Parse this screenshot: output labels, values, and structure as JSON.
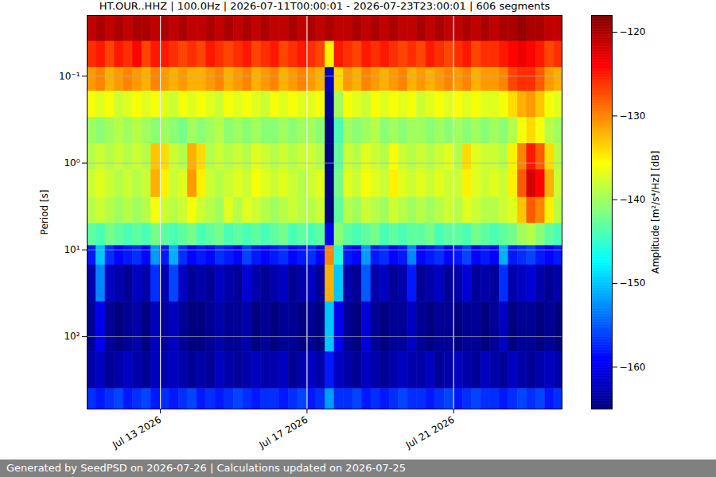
{
  "chart_data": {
    "type": "heatmap",
    "title": "HT.OUR..HHZ | 100.0Hz | 2026-07-11T00:00:01 - 2026-07-23T23:00:01 | 606 segments",
    "caption": "Generated by SeedPSD on 2026-07-26 | Calculations updated on 2026-07-25",
    "y_label": "Period [s]",
    "log": "y",
    "grid": true,
    "xlim": [
      "2026-07-11T00:00:01",
      "2026-07-23T23:00:01"
    ],
    "xticks": [
      {
        "value": "2026-07-13T00:00:00",
        "label": "Jul 13 2026"
      },
      {
        "value": "2026-07-17T00:00:00",
        "label": "Jul 17 2026"
      },
      {
        "value": "2026-07-21T00:00:00",
        "label": "Jul 21 2026"
      }
    ],
    "ylim": [
      0.02,
      680
    ],
    "yticks": [
      {
        "value": 0.1,
        "label": "10⁻¹"
      },
      {
        "value": 1,
        "label": "10⁰"
      },
      {
        "value": 10,
        "label": "10¹"
      },
      {
        "value": 100,
        "label": "10²"
      }
    ],
    "x": [
      "2026-07-11T00:00:01",
      "2026-07-11T06:00:01",
      "2026-07-11T12:00:01",
      "2026-07-11T18:00:01",
      "2026-07-12T00:00:01",
      "2026-07-12T06:00:01",
      "2026-07-12T12:00:01",
      "2026-07-12T18:00:01",
      "2026-07-13T00:00:01",
      "2026-07-13T06:00:01",
      "2026-07-13T12:00:01",
      "2026-07-13T18:00:01",
      "2026-07-14T00:00:01",
      "2026-07-14T06:00:01",
      "2026-07-14T12:00:01",
      "2026-07-14T18:00:01",
      "2026-07-15T00:00:01",
      "2026-07-15T06:00:01",
      "2026-07-15T12:00:01",
      "2026-07-15T18:00:01",
      "2026-07-16T00:00:01",
      "2026-07-16T06:00:01",
      "2026-07-16T12:00:01",
      "2026-07-16T18:00:01",
      "2026-07-17T00:00:01",
      "2026-07-17T06:00:01",
      "2026-07-17T12:00:01",
      "2026-07-17T18:00:01",
      "2026-07-18T00:00:01",
      "2026-07-18T06:00:01",
      "2026-07-18T12:00:01",
      "2026-07-18T18:00:01",
      "2026-07-19T00:00:01",
      "2026-07-19T06:00:01",
      "2026-07-19T12:00:01",
      "2026-07-19T18:00:01",
      "2026-07-20T00:00:01",
      "2026-07-20T06:00:01",
      "2026-07-20T12:00:01",
      "2026-07-20T18:00:01",
      "2026-07-21T00:00:01",
      "2026-07-21T06:00:01",
      "2026-07-21T12:00:01",
      "2026-07-21T18:00:01",
      "2026-07-22T00:00:01",
      "2026-07-22T06:00:01",
      "2026-07-22T12:00:01",
      "2026-07-22T18:00:01",
      "2026-07-23T00:00:01",
      "2026-07-23T06:00:01",
      "2026-07-23T12:00:01",
      "2026-07-23T18:00:01"
    ],
    "y_edges": [
      0.02,
      0.04,
      0.08,
      0.15,
      0.3,
      0.6,
      1.2,
      2.5,
      5,
      9,
      15,
      40,
      150,
      400,
      680
    ],
    "values": [
      [
        -121,
        -120,
        -121,
        -120,
        -121,
        -120,
        -120,
        -121,
        -120,
        -121,
        -120,
        -121,
        -121,
        -120,
        -121,
        -120,
        -121,
        -120,
        -121,
        -120,
        -121,
        -121,
        -120,
        -121,
        -120,
        -121,
        -120,
        -121,
        -121,
        -120,
        -121,
        -120,
        -121,
        -120,
        -121,
        -121,
        -120,
        -121,
        -120,
        -121,
        -121,
        -120,
        -121,
        -120,
        -121,
        -120,
        -120,
        -119,
        -120,
        -120,
        -121,
        -121
      ],
      [
        -126,
        -125,
        -127,
        -125,
        -126,
        -124,
        -127,
        -125,
        -125,
        -126,
        -127,
        -126,
        -127,
        -125,
        -126,
        -127,
        -126,
        -125,
        -127,
        -126,
        -125,
        -127,
        -126,
        -125,
        -126,
        -127,
        -135,
        -125,
        -126,
        -127,
        -125,
        -126,
        -125,
        -126,
        -127,
        -126,
        -127,
        -125,
        -126,
        -127,
        -126,
        -125,
        -127,
        -126,
        -126,
        -125,
        -124,
        -123,
        -124,
        -125,
        -127,
        -126
      ],
      [
        -131,
        -130,
        -132,
        -131,
        -130,
        -131,
        -132,
        -130,
        -131,
        -132,
        -131,
        -132,
        -132,
        -131,
        -130,
        -132,
        -131,
        -130,
        -132,
        -131,
        -130,
        -132,
        -131,
        -130,
        -131,
        -132,
        -162,
        -134,
        -131,
        -132,
        -130,
        -131,
        -132,
        -131,
        -130,
        -132,
        -131,
        -132,
        -131,
        -130,
        -131,
        -130,
        -132,
        -131,
        -131,
        -130,
        -127,
        -126,
        -126,
        -128,
        -131,
        -132
      ],
      [
        -136,
        -137,
        -136,
        -138,
        -137,
        -136,
        -137,
        -136,
        -137,
        -138,
        -136,
        -137,
        -136,
        -137,
        -138,
        -136,
        -137,
        -136,
        -137,
        -138,
        -136,
        -137,
        -136,
        -137,
        -137,
        -136,
        -164,
        -140,
        -136,
        -137,
        -138,
        -136,
        -137,
        -136,
        -137,
        -136,
        -138,
        -137,
        -136,
        -137,
        -136,
        -137,
        -136,
        -137,
        -137,
        -136,
        -134,
        -132,
        -131,
        -133,
        -136,
        -137
      ],
      [
        -140,
        -141,
        -140,
        -139,
        -140,
        -139,
        -140,
        -141,
        -140,
        -141,
        -142,
        -140,
        -141,
        -140,
        -139,
        -141,
        -140,
        -141,
        -140,
        -141,
        -141,
        -140,
        -141,
        -140,
        -140,
        -141,
        -165,
        -144,
        -140,
        -141,
        -140,
        -139,
        -141,
        -140,
        -141,
        -140,
        -140,
        -141,
        -140,
        -141,
        -140,
        -141,
        -140,
        -141,
        -140,
        -141,
        -139,
        -136,
        -134,
        -136,
        -139,
        -140
      ],
      [
        -139,
        -138,
        -139,
        -138,
        -139,
        -138,
        -139,
        -133,
        -134,
        -138,
        -139,
        -132,
        -134,
        -139,
        -138,
        -139,
        -138,
        -139,
        -137,
        -138,
        -139,
        -138,
        -139,
        -138,
        -138,
        -139,
        -165,
        -143,
        -138,
        -139,
        -137,
        -138,
        -139,
        -136,
        -138,
        -139,
        -138,
        -139,
        -138,
        -137,
        -139,
        -134,
        -137,
        -138,
        -138,
        -139,
        -135,
        -130,
        -125,
        -128,
        -134,
        -139
      ],
      [
        -138,
        -137,
        -138,
        -139,
        -138,
        -139,
        -138,
        -132,
        -135,
        -138,
        -137,
        -131,
        -135,
        -138,
        -139,
        -138,
        -137,
        -138,
        -136,
        -137,
        -138,
        -137,
        -138,
        -139,
        -138,
        -137,
        -165,
        -142,
        -137,
        -138,
        -136,
        -137,
        -138,
        -135,
        -137,
        -138,
        -137,
        -138,
        -137,
        -138,
        -138,
        -135,
        -137,
        -138,
        -137,
        -138,
        -135,
        -128,
        -122,
        -124,
        -132,
        -138
      ],
      [
        -139,
        -138,
        -139,
        -140,
        -139,
        -140,
        -139,
        -136,
        -138,
        -139,
        -138,
        -136,
        -138,
        -139,
        -140,
        -137,
        -139,
        -137,
        -138,
        -139,
        -140,
        -139,
        -138,
        -139,
        -139,
        -138,
        -165,
        -143,
        -139,
        -140,
        -138,
        -139,
        -140,
        -138,
        -139,
        -140,
        -139,
        -140,
        -139,
        -138,
        -139,
        -137,
        -138,
        -139,
        -139,
        -138,
        -137,
        -133,
        -128,
        -130,
        -135,
        -139
      ],
      [
        -143,
        -144,
        -142,
        -143,
        -144,
        -143,
        -144,
        -142,
        -143,
        -144,
        -143,
        -142,
        -144,
        -143,
        -142,
        -144,
        -143,
        -144,
        -143,
        -144,
        -143,
        -142,
        -144,
        -143,
        -144,
        -143,
        -160,
        -141,
        -143,
        -144,
        -143,
        -142,
        -144,
        -143,
        -144,
        -143,
        -143,
        -142,
        -144,
        -143,
        -143,
        -144,
        -142,
        -143,
        -144,
        -143,
        -142,
        -140,
        -139,
        -141,
        -143,
        -144
      ],
      [
        -158,
        -150,
        -157,
        -159,
        -158,
        -157,
        -159,
        -152,
        -158,
        -151,
        -157,
        -159,
        -158,
        -159,
        -157,
        -158,
        -159,
        -156,
        -158,
        -159,
        -158,
        -157,
        -159,
        -158,
        -157,
        -159,
        -130,
        -146,
        -158,
        -159,
        -152,
        -158,
        -157,
        -159,
        -158,
        -153,
        -159,
        -158,
        -157,
        -159,
        -158,
        -156,
        -159,
        -158,
        -159,
        -151,
        -158,
        -157,
        -156,
        -158,
        -159,
        -158
      ],
      [
        -163,
        -153,
        -162,
        -163,
        -164,
        -162,
        -163,
        -157,
        -163,
        -156,
        -162,
        -164,
        -163,
        -164,
        -162,
        -163,
        -164,
        -161,
        -163,
        -164,
        -163,
        -162,
        -164,
        -163,
        -162,
        -164,
        -132,
        -150,
        -163,
        -164,
        -155,
        -163,
        -162,
        -164,
        -163,
        -158,
        -164,
        -163,
        -162,
        -164,
        -163,
        -161,
        -164,
        -163,
        -164,
        -157,
        -163,
        -162,
        -161,
        -163,
        -164,
        -163
      ],
      [
        -164,
        -160,
        -164,
        -165,
        -164,
        -163,
        -165,
        -162,
        -164,
        -162,
        -164,
        -165,
        -165,
        -164,
        -163,
        -164,
        -164,
        -163,
        -165,
        -164,
        -165,
        -164,
        -164,
        -165,
        -164,
        -165,
        -150,
        -160,
        -164,
        -165,
        -161,
        -164,
        -165,
        -164,
        -164,
        -162,
        -164,
        -165,
        -164,
        -164,
        -165,
        -164,
        -164,
        -165,
        -164,
        -162,
        -165,
        -164,
        -164,
        -165,
        -164,
        -165
      ],
      [
        -163,
        -162,
        -164,
        -163,
        -162,
        -163,
        -164,
        -162,
        -163,
        -162,
        -163,
        -164,
        -163,
        -164,
        -162,
        -163,
        -164,
        -163,
        -162,
        -163,
        -163,
        -162,
        -164,
        -163,
        -162,
        -163,
        -158,
        -162,
        -163,
        -164,
        -162,
        -163,
        -164,
        -163,
        -162,
        -163,
        -163,
        -162,
        -164,
        -163,
        -162,
        -163,
        -164,
        -162,
        -163,
        -164,
        -162,
        -163,
        -164,
        -163,
        -162,
        -163
      ],
      [
        -157,
        -158,
        -157,
        -156,
        -158,
        -157,
        -156,
        -158,
        -157,
        -158,
        -157,
        -156,
        -158,
        -157,
        -158,
        -157,
        -156,
        -157,
        -158,
        -157,
        -157,
        -158,
        -157,
        -156,
        -158,
        -157,
        -152,
        -157,
        -157,
        -156,
        -158,
        -157,
        -158,
        -157,
        -156,
        -157,
        -157,
        -158,
        -157,
        -156,
        -158,
        -157,
        -156,
        -157,
        -157,
        -158,
        -157,
        -156,
        -157,
        -156,
        -158,
        -157
      ]
    ],
    "colorbar": {
      "label": "Amplitude [m²/s⁴/Hz] [dB]",
      "range": [
        -165,
        -118
      ],
      "ticks": [
        -160,
        -150,
        -140,
        -130,
        -120
      ]
    }
  }
}
